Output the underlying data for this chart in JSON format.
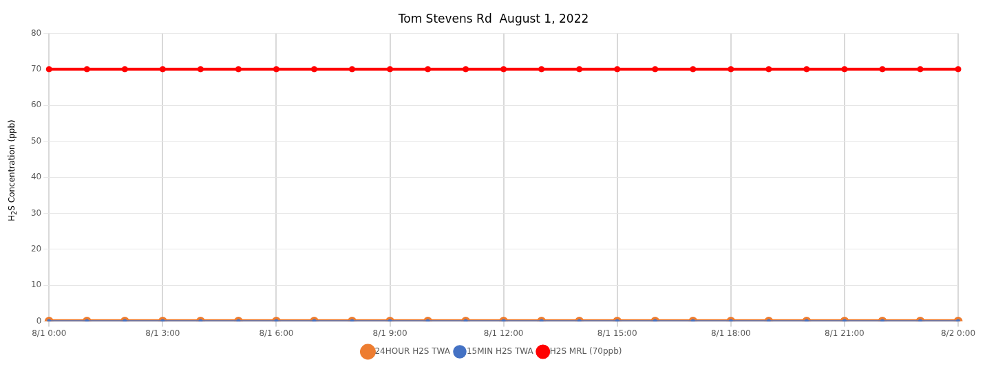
{
  "chart_data": {
    "type": "line",
    "title": "Tom Stevens Rd  August 1, 2022",
    "ylabel": "H$_{2}$S Concentration (ppb)",
    "categories": [
      "8/1 0:00",
      null,
      null,
      "8/1 3:00",
      null,
      null,
      "8/1 6:00",
      null,
      null,
      "8/1 9:00",
      null,
      null,
      "8/1 12:00",
      null,
      null,
      "8/1 15:00",
      null,
      null,
      "8/1 18:00",
      null,
      null,
      "8/1 21:00",
      null,
      null,
      "8/2 0:00"
    ],
    "series": [
      {
        "name": "24HOUR H2S TWA",
        "color": "#ed7d31",
        "values": [
          0,
          0,
          0,
          0,
          0,
          0,
          0,
          0,
          0,
          0,
          0,
          0,
          0,
          0,
          0,
          0,
          0,
          0,
          0,
          0,
          0,
          0,
          0,
          0,
          0
        ]
      },
      {
        "name": "15MIN H2S TWA",
        "color": "#4472c4",
        "values": [
          0,
          0,
          0,
          0,
          0,
          0,
          0,
          0,
          0,
          0,
          0,
          0,
          0,
          0,
          0,
          0,
          0,
          0,
          0,
          0,
          0,
          0,
          0,
          0,
          0
        ]
      },
      {
        "name": "H2S MRL (70ppb)",
        "color": "#ff0000",
        "values": [
          70,
          70,
          70,
          70,
          70,
          70,
          70,
          70,
          70,
          70,
          70,
          70,
          70,
          70,
          70,
          70,
          70,
          70,
          70,
          70,
          70,
          70,
          70,
          70,
          70
        ]
      }
    ],
    "ylim": [
      0,
      80
    ],
    "yticks": [
      0,
      10,
      20,
      30,
      40,
      50,
      60,
      70,
      80
    ],
    "grid": true,
    "legend": "bottom",
    "marker": "circle",
    "line_style": "solid"
  }
}
